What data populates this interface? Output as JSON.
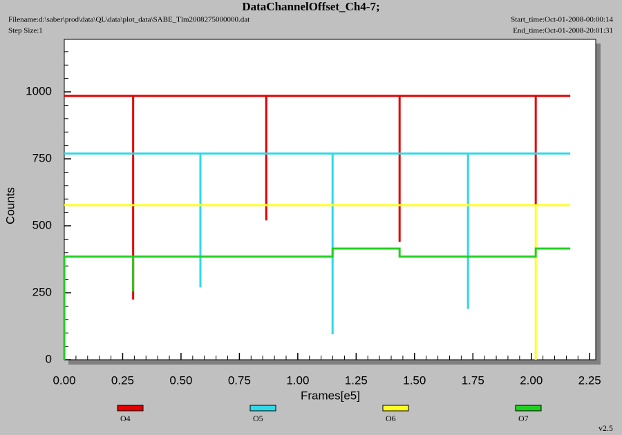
{
  "header": {
    "filename": "Filename:d:\\saber\\prod\\data\\QL\\data\\plot_data\\SABE_Tlm2008275000000.dat",
    "step_size": "Step Size:1",
    "start_time": "Start_time:Oct-01-2008-00:00:14",
    "end_time": "End_time:Oct-01-2008-20:01:31"
  },
  "version": "v2.5",
  "chart_data": {
    "type": "line",
    "title": "DataChannelOffset_Ch4-7;",
    "x_label": "Frames[e5]",
    "y_label": "Counts",
    "xlim": [
      0,
      2.276
    ],
    "ylim": [
      0,
      1196
    ],
    "xticks": [
      {
        "value": 0,
        "label": "0.00"
      },
      0.25,
      {
        "value": 0.5,
        "label": "0.50"
      },
      0.75,
      {
        "value": 1,
        "label": "1.00"
      },
      1.25,
      {
        "value": 1.5,
        "label": "1.50"
      },
      1.75,
      {
        "value": 2,
        "label": "2.00"
      },
      2.25
    ],
    "yticks": [
      0,
      250,
      500,
      750,
      1000
    ],
    "series": [
      {
        "name": "O4",
        "color": "#e00000",
        "x": [
          0,
          0.295,
          0.295,
          0.295,
          0.865,
          0.865,
          0.865,
          1.436,
          1.436,
          1.436,
          2.019,
          2.019,
          2.019,
          2.167
        ],
        "values": [
          985,
          985,
          225,
          985,
          985,
          520,
          985,
          985,
          440,
          985,
          985,
          580,
          985,
          985
        ]
      },
      {
        "name": "O5",
        "color": "#30d8e8",
        "x": [
          0,
          0.583,
          0.583,
          0.583,
          1.149,
          1.149,
          1.149,
          1.729,
          1.729,
          1.729,
          2.167
        ],
        "values": [
          770,
          770,
          270,
          770,
          770,
          95,
          770,
          770,
          190,
          770,
          770
        ]
      },
      {
        "name": "O6",
        "color": "#ffff20",
        "x": [
          0,
          2.019,
          2.019,
          2.019,
          2.167
        ],
        "values": [
          577,
          577,
          0,
          577,
          577
        ]
      },
      {
        "name": "O7",
        "color": "#20d020",
        "x": [
          0,
          0,
          0.295,
          0.295,
          0.295,
          1.149,
          1.149,
          1.436,
          1.436,
          2.019,
          2.019,
          2.167
        ],
        "values": [
          0,
          385,
          385,
          255,
          385,
          385,
          415,
          415,
          385,
          385,
          415,
          415
        ]
      }
    ]
  }
}
